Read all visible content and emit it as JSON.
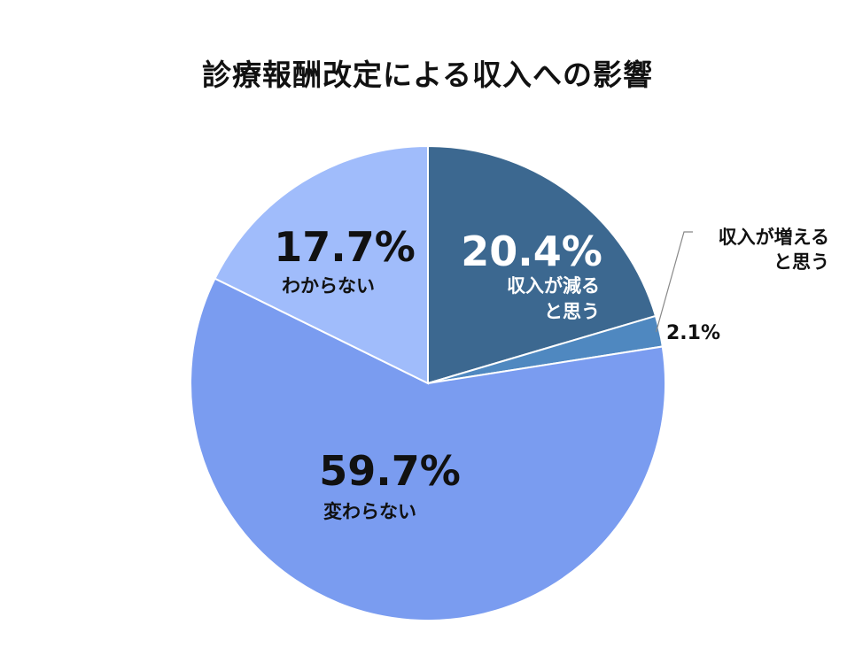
{
  "chart_data": {
    "type": "pie",
    "title": "診療報酬改定による収入への影響",
    "slices": [
      {
        "label": "収入が減る と思う",
        "label_lines": [
          "収入が減る",
          "と思う"
        ],
        "value": 20.4,
        "value_text": "20.4%",
        "color": "#3c6890",
        "text_color": "#ffffff"
      },
      {
        "label": "収入が増える と思う",
        "label_lines": [
          "収入が増える",
          "と思う"
        ],
        "value": 2.1,
        "value_text": "2.1%",
        "color": "#4f88c0",
        "text_color": "#111111"
      },
      {
        "label": "変わらない",
        "label_lines": [
          "変わらない"
        ],
        "value": 59.7,
        "value_text": "59.7%",
        "color": "#7a9cf0",
        "text_color": "#111111"
      },
      {
        "label": "わからない",
        "label_lines": [
          "わからない"
        ],
        "value": 17.7,
        "value_text": "17.7%",
        "color": "#a0bcfb",
        "text_color": "#111111"
      }
    ]
  }
}
